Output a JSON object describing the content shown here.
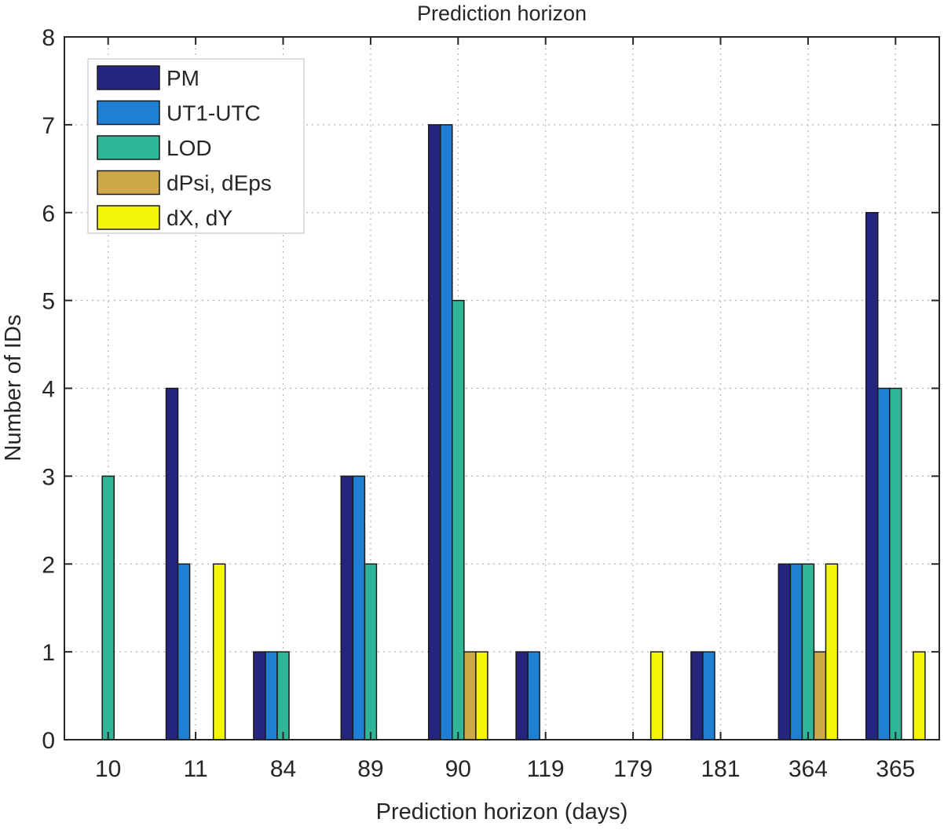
{
  "chart_data": {
    "type": "bar",
    "title": "Prediction horizon",
    "xlabel": "Prediction horizon (days)",
    "ylabel": "Number of IDs",
    "categories": [
      "10",
      "11",
      "84",
      "89",
      "90",
      "119",
      "179",
      "181",
      "364",
      "365"
    ],
    "ylim": [
      0,
      8
    ],
    "yticks": [
      0,
      1,
      2,
      3,
      4,
      5,
      6,
      7,
      8
    ],
    "grid": true,
    "legend_position": "top-left",
    "series": [
      {
        "name": "PM",
        "color": "#25257d",
        "values": [
          0,
          4,
          1,
          3,
          7,
          1,
          0,
          1,
          2,
          6
        ]
      },
      {
        "name": "UT1-UTC",
        "color": "#1e7fd4",
        "values": [
          0,
          2,
          1,
          3,
          7,
          1,
          0,
          1,
          2,
          4
        ]
      },
      {
        "name": "LOD",
        "color": "#2fb597",
        "values": [
          3,
          0,
          1,
          2,
          5,
          0,
          0,
          0,
          2,
          4
        ]
      },
      {
        "name": "dPsi, dEps",
        "color": "#cfa84a",
        "values": [
          0,
          0,
          0,
          0,
          1,
          0,
          0,
          0,
          1,
          0
        ]
      },
      {
        "name": "dX, dY",
        "color": "#f5f50a",
        "values": [
          0,
          2,
          0,
          0,
          1,
          0,
          1,
          0,
          2,
          1
        ]
      }
    ]
  }
}
